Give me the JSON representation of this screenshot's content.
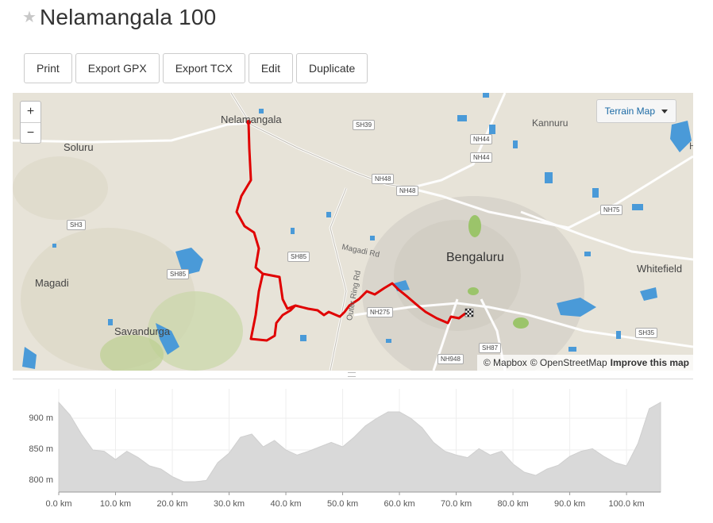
{
  "route": {
    "title": "Nelamangala 100",
    "star_glyph": "★"
  },
  "toolbar": {
    "buttons": [
      "Print",
      "Export GPX",
      "Export TCX",
      "Edit",
      "Duplicate"
    ]
  },
  "map": {
    "zoom_in": "+",
    "zoom_out": "−",
    "layer_select": "Terrain Map",
    "attribution": {
      "mapbox": "© Mapbox",
      "osm": "© OpenStreetMap",
      "improve": "Improve this map"
    },
    "places": {
      "nelamangala": "Nelamangala",
      "soluru": "Soluru",
      "magadi": "Magadi",
      "savandurga": "Savandurga",
      "bengaluru": "Bengaluru",
      "whitefield": "Whitefield",
      "kannuru": "Kannuru",
      "h": "H"
    },
    "road_shields": {
      "sh39": "SH39",
      "nh44a": "NH44",
      "nh44b": "NH44",
      "nh48a": "NH48",
      "nh48b": "NH48",
      "sh3": "SH3",
      "sh85a": "SH85",
      "sh85b": "SH85",
      "nh275": "NH275",
      "nh75": "NH75",
      "sh35": "SH35",
      "sh87": "SH87",
      "nh948": "NH948"
    },
    "road_labels": {
      "magadi_rd": "Magadi Rd",
      "ring_rd": "Outer Ring Rd"
    },
    "colors": {
      "route": "#e00000",
      "water": "#4a9ad8",
      "urban": "#d9d5cc",
      "land": "#e7e3d8",
      "park": "#b7d38e"
    }
  },
  "elevation": {
    "y_ticks": [
      "900 m",
      "850 m",
      "800 m"
    ],
    "x_ticks": [
      "0.0 km",
      "10.0 km",
      "20.0 km",
      "30.0 km",
      "40.0 km",
      "50.0 km",
      "60.0 km",
      "70.0 km",
      "80.0 km",
      "90.0 km",
      "100.0 km"
    ],
    "distance_km": [
      0,
      2,
      4,
      6,
      8,
      10,
      12,
      14,
      16,
      18,
      20,
      22,
      24,
      26,
      28,
      30,
      32,
      34,
      36,
      38,
      40,
      42,
      44,
      46,
      48,
      50,
      52,
      54,
      56,
      58,
      60,
      62,
      64,
      66,
      68,
      70,
      72,
      74,
      76,
      78,
      80,
      82,
      84,
      86,
      88,
      90,
      92,
      94,
      96,
      98,
      100,
      102,
      104,
      106
    ],
    "elevation_m": [
      925,
      905,
      875,
      850,
      848,
      835,
      848,
      838,
      825,
      820,
      808,
      800,
      800,
      802,
      830,
      845,
      870,
      875,
      855,
      865,
      850,
      842,
      848,
      855,
      862,
      855,
      870,
      888,
      900,
      910,
      910,
      900,
      885,
      862,
      848,
      842,
      838,
      852,
      842,
      848,
      828,
      815,
      810,
      820,
      826,
      840,
      848,
      852,
      840,
      830,
      825,
      860,
      915,
      925
    ],
    "color": "#d9d9d9"
  }
}
